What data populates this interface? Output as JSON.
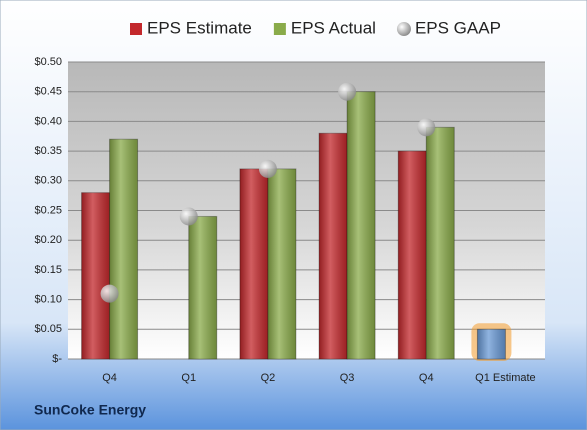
{
  "chart_data": {
    "type": "bar",
    "title": "SunCoke Energy",
    "categories": [
      "Q4",
      "Q1",
      "Q2",
      "Q3",
      "Q4",
      "Q1 Estimate"
    ],
    "series": [
      {
        "name": "EPS Estimate",
        "color": "#c3282c",
        "values": [
          0.28,
          null,
          0.32,
          0.38,
          0.35,
          0.05
        ],
        "colors": [
          "#c3282c",
          "#c3282c",
          "#c3282c",
          "#c3282c",
          "#c3282c",
          "#6a9ad6"
        ]
      },
      {
        "name": "EPS Actual",
        "color": "#8aab4a",
        "values": [
          0.37,
          0.24,
          0.32,
          0.45,
          0.39,
          null
        ]
      },
      {
        "name": "EPS GAAP",
        "color": "#a8a8a8",
        "type": "scatter",
        "values": [
          0.11,
          0.24,
          0.32,
          0.45,
          0.39,
          null
        ]
      }
    ],
    "ylim": [
      0,
      0.5
    ],
    "yticks": [
      {
        "value": 0,
        "label": "$-"
      },
      {
        "value": 0.05,
        "label": "$0.05"
      },
      {
        "value": 0.1,
        "label": "$0.10"
      },
      {
        "value": 0.15,
        "label": "$0.15"
      },
      {
        "value": 0.2,
        "label": "$0.20"
      },
      {
        "value": 0.25,
        "label": "$0.25"
      },
      {
        "value": 0.3,
        "label": "$0.30"
      },
      {
        "value": 0.35,
        "label": "$0.35"
      },
      {
        "value": 0.4,
        "label": "$0.40"
      },
      {
        "value": 0.45,
        "label": "$0.45"
      },
      {
        "value": 0.5,
        "label": "$0.50"
      }
    ],
    "grid": true
  }
}
